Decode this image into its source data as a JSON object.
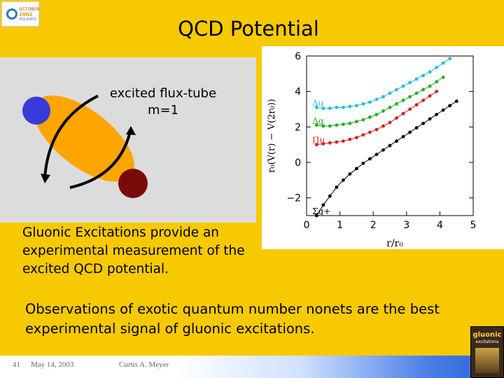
{
  "logo": {
    "line1": "OCTOBER",
    "line2": "2002",
    "line3": "HOLIDAYS"
  },
  "slide": {
    "title": "QCD Potential",
    "flux_label": "excited flux-tube\nm=1",
    "gluonic_text": "Gluonic Excitations provide an experimental measurement of the excited QCD potential.",
    "observations": "Observations of exotic quantum number nonets are the best experimental signal of gluonic excitations.",
    "colors": {
      "background": "#f7c900",
      "quark_blue": "#3a3ad8",
      "quark_red": "#7a0a0a",
      "flux_tube": "#ffa500"
    }
  },
  "footer": {
    "page": "41",
    "date": "May 14, 2003",
    "author": "Curtis A. Meyer"
  },
  "book": {
    "title": "gluonic",
    "subtitle": "excitations"
  },
  "chart_data": {
    "type": "scatter",
    "xlabel": "r/r₀",
    "ylabel": "r₀(V(r) − V(2r₀))",
    "xlim": [
      0,
      5
    ],
    "ylim": [
      -3,
      6
    ],
    "xticks": [
      "0",
      "1",
      "2",
      "3",
      "4",
      "5"
    ],
    "yticks": [
      "−2",
      "0",
      "2",
      "4",
      "6"
    ],
    "series": [
      {
        "name": "Σg+",
        "color": "#000000",
        "x": [
          0.3,
          0.5,
          0.7,
          0.9,
          1.1,
          1.3,
          1.5,
          1.7,
          1.9,
          2.1,
          2.3,
          2.5,
          2.7,
          2.9,
          3.1,
          3.3,
          3.5,
          3.7,
          3.9,
          4.1,
          4.3,
          4.5
        ],
        "y": [
          -3.0,
          -2.4,
          -1.9,
          -1.4,
          -1.0,
          -0.65,
          -0.35,
          -0.05,
          0.2,
          0.45,
          0.7,
          0.95,
          1.2,
          1.45,
          1.7,
          1.95,
          2.2,
          2.45,
          2.7,
          2.95,
          3.2,
          3.45
        ]
      },
      {
        "name": "Πu",
        "color": "#d42020",
        "x": [
          0.3,
          0.5,
          0.7,
          0.9,
          1.1,
          1.3,
          1.5,
          1.7,
          1.9,
          2.1,
          2.3,
          2.5,
          2.7,
          2.9,
          3.1,
          3.3,
          3.5,
          3.7,
          3.9
        ],
        "y": [
          1.0,
          1.05,
          1.1,
          1.15,
          1.2,
          1.3,
          1.4,
          1.55,
          1.7,
          1.85,
          2.05,
          2.25,
          2.5,
          2.75,
          3.0,
          3.25,
          3.5,
          3.75,
          4.0
        ]
      },
      {
        "name": "Δg",
        "color": "#20b020",
        "x": [
          0.3,
          0.5,
          0.7,
          0.9,
          1.1,
          1.3,
          1.5,
          1.7,
          1.9,
          2.1,
          2.3,
          2.5,
          2.7,
          2.9,
          3.1,
          3.3,
          3.5,
          3.7,
          3.9,
          4.1
        ],
        "y": [
          2.1,
          2.05,
          2.05,
          2.1,
          2.15,
          2.2,
          2.3,
          2.4,
          2.55,
          2.7,
          2.9,
          3.1,
          3.3,
          3.5,
          3.7,
          3.9,
          4.1,
          4.3,
          4.55,
          4.8
        ]
      },
      {
        "name": "Δu",
        "color": "#20c0d8",
        "x": [
          0.3,
          0.5,
          0.7,
          0.9,
          1.1,
          1.3,
          1.5,
          1.7,
          1.9,
          2.1,
          2.3,
          2.5,
          2.7,
          2.9,
          3.1,
          3.3,
          3.5,
          3.7,
          3.9,
          4.1,
          4.3
        ],
        "y": [
          3.1,
          3.05,
          3.05,
          3.1,
          3.1,
          3.15,
          3.2,
          3.3,
          3.4,
          3.55,
          3.7,
          3.9,
          4.1,
          4.3,
          4.5,
          4.7,
          4.9,
          5.1,
          5.35,
          5.6,
          5.85
        ]
      }
    ]
  }
}
